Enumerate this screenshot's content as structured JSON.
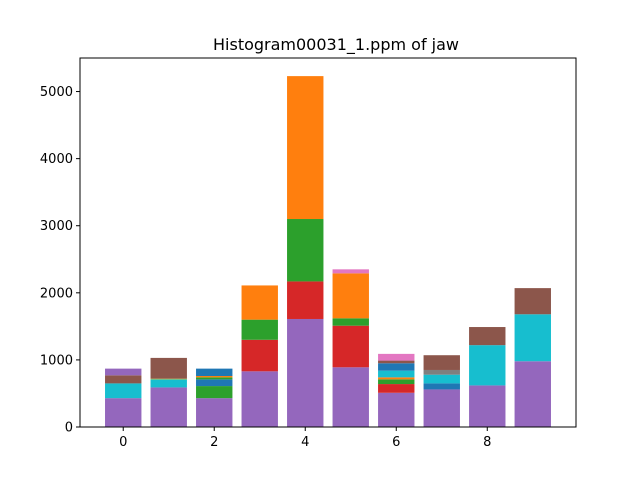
{
  "chart_data": {
    "type": "bar",
    "stacked": true,
    "title": "Histogram00031_1.ppm of jaw",
    "xlabel": "",
    "ylabel": "",
    "x": [
      0,
      1,
      2,
      3,
      4,
      5,
      6,
      7,
      8,
      9
    ],
    "xlim": [
      -0.95,
      9.95
    ],
    "ylim": [
      0,
      5500
    ],
    "xticks": [
      0,
      2,
      4,
      6,
      8
    ],
    "yticks": [
      0,
      1000,
      2000,
      3000,
      4000,
      5000
    ],
    "grid": false,
    "bars": [
      {
        "x": 0,
        "segments": [
          {
            "value": 430,
            "color": "#9467bd"
          },
          {
            "value": 220,
            "color": "#17becf"
          },
          {
            "value": 120,
            "color": "#8c564b"
          },
          {
            "value": 100,
            "color": "#9467bd"
          }
        ]
      },
      {
        "x": 1,
        "segments": [
          {
            "value": 590,
            "color": "#9467bd"
          },
          {
            "value": 120,
            "color": "#17becf"
          },
          {
            "value": 10,
            "color": "#bcbd22"
          },
          {
            "value": 310,
            "color": "#8c564b"
          }
        ]
      },
      {
        "x": 2,
        "segments": [
          {
            "value": 430,
            "color": "#9467bd"
          },
          {
            "value": 180,
            "color": "#2ca02c"
          },
          {
            "value": 100,
            "color": "#1f77b4"
          },
          {
            "value": 30,
            "color": "#2ca02c"
          },
          {
            "value": 20,
            "color": "#ff7f0e"
          },
          {
            "value": 110,
            "color": "#1f77b4"
          }
        ]
      },
      {
        "x": 3,
        "segments": [
          {
            "value": 830,
            "color": "#9467bd"
          },
          {
            "value": 470,
            "color": "#d62728"
          },
          {
            "value": 300,
            "color": "#2ca02c"
          },
          {
            "value": 510,
            "color": "#ff7f0e"
          }
        ]
      },
      {
        "x": 4,
        "segments": [
          {
            "value": 1610,
            "color": "#9467bd"
          },
          {
            "value": 560,
            "color": "#d62728"
          },
          {
            "value": 930,
            "color": "#2ca02c"
          },
          {
            "value": 2130,
            "color": "#ff7f0e"
          }
        ]
      },
      {
        "x": 5,
        "segments": [
          {
            "value": 890,
            "color": "#9467bd"
          },
          {
            "value": 620,
            "color": "#d62728"
          },
          {
            "value": 110,
            "color": "#2ca02c"
          },
          {
            "value": 670,
            "color": "#ff7f0e"
          },
          {
            "value": 60,
            "color": "#e377c2"
          }
        ]
      },
      {
        "x": 6,
        "segments": [
          {
            "value": 510,
            "color": "#9467bd"
          },
          {
            "value": 130,
            "color": "#d62728"
          },
          {
            "value": 70,
            "color": "#2ca02c"
          },
          {
            "value": 30,
            "color": "#ff7f0e"
          },
          {
            "value": 100,
            "color": "#17becf"
          },
          {
            "value": 110,
            "color": "#1f77b4"
          },
          {
            "value": 40,
            "color": "#8c564b"
          },
          {
            "value": 100,
            "color": "#e377c2"
          }
        ]
      },
      {
        "x": 7,
        "segments": [
          {
            "value": 560,
            "color": "#9467bd"
          },
          {
            "value": 90,
            "color": "#1f77b4"
          },
          {
            "value": 130,
            "color": "#17becf"
          },
          {
            "value": 70,
            "color": "#7f7f7f"
          },
          {
            "value": 220,
            "color": "#8c564b"
          }
        ]
      },
      {
        "x": 8,
        "segments": [
          {
            "value": 620,
            "color": "#9467bd"
          },
          {
            "value": 600,
            "color": "#17becf"
          },
          {
            "value": 270,
            "color": "#8c564b"
          }
        ]
      },
      {
        "x": 9,
        "segments": [
          {
            "value": 980,
            "color": "#9467bd"
          },
          {
            "value": 700,
            "color": "#17becf"
          },
          {
            "value": 390,
            "color": "#8c564b"
          }
        ]
      }
    ]
  }
}
